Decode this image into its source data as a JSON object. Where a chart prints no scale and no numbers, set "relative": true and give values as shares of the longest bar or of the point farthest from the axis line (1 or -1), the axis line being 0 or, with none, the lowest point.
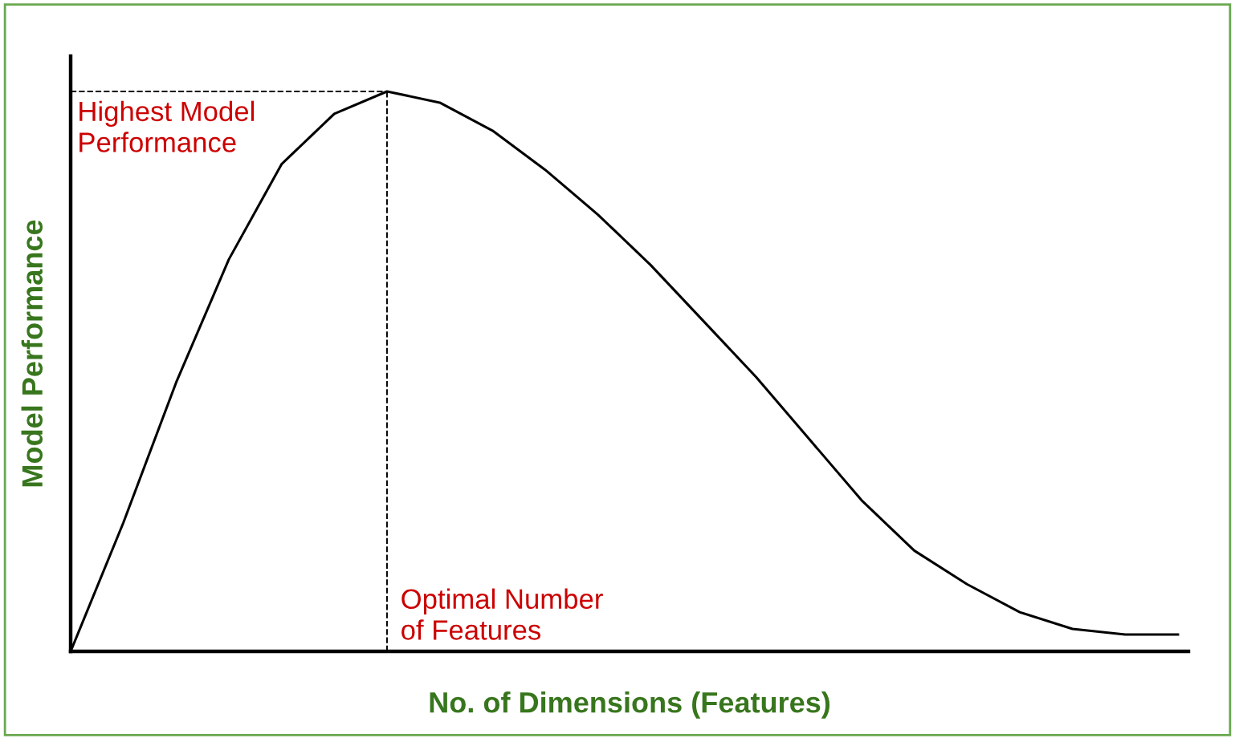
{
  "chart_data": {
    "type": "line",
    "relative": true,
    "xlabel": "No. of Dimensions (Features)",
    "ylabel": "Model Performance",
    "categories": [
      null,
      null,
      null,
      null,
      null,
      null,
      null,
      null,
      null,
      null,
      null,
      null,
      null,
      null,
      null,
      null,
      null,
      null,
      null,
      null,
      null,
      null
    ],
    "series": [
      {
        "color": "#000000",
        "values": [
          0,
          0.23,
          0.48,
          0.7,
          0.87,
          0.96,
          1,
          0.98,
          0.93,
          0.86,
          0.78,
          0.69,
          0.59,
          0.49,
          0.38,
          0.27,
          0.18,
          0.12,
          0.07,
          0.04,
          0.03,
          0.03
        ]
      }
    ],
    "ref_lines": [
      {
        "axis": "y",
        "value": 1,
        "line_style": "dashed",
        "color": "#000000"
      }
    ],
    "annotations": [
      "Highest Model\nPerformance",
      "Optimal Number\nof Features"
    ],
    "line_style": "solid",
    "marker": "none",
    "legend": false
  }
}
